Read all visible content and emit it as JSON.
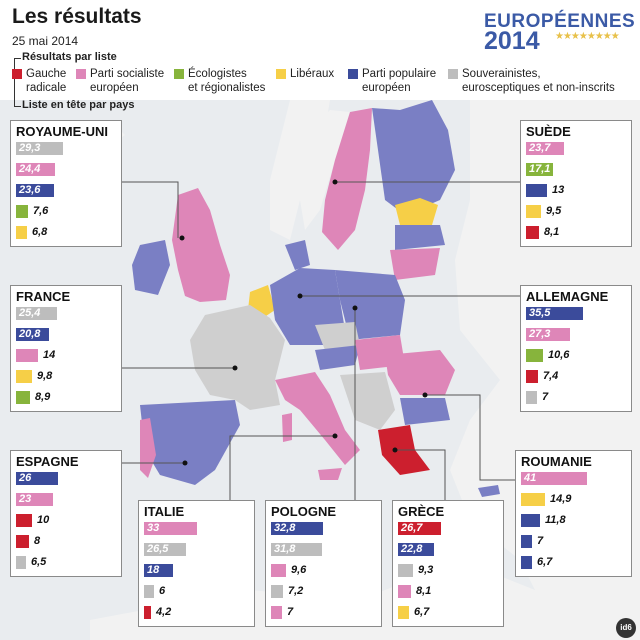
{
  "header": {
    "title": "Les résultats",
    "date": "25 mai 2014",
    "logo_word": "EUROPÉENNES",
    "logo_year": "2014"
  },
  "legend": {
    "title": "Résultats par liste",
    "subtitle": "Liste en tête par pays",
    "items": [
      {
        "key": "gauche",
        "line1": "Gauche",
        "line2": "radicale",
        "color": "#cc1f2e"
      },
      {
        "key": "ps",
        "line1": "Parti socialiste",
        "line2": "européen",
        "color": "#de86b8"
      },
      {
        "key": "eco",
        "line1": "Écologistes",
        "line2": "et régionalistes",
        "color": "#87b43c"
      },
      {
        "key": "lib",
        "line1": "Libéraux",
        "line2": "",
        "color": "#f6cf47"
      },
      {
        "key": "ppe",
        "line1": "Parti populaire",
        "line2": "européen",
        "color": "#3b4b9b"
      },
      {
        "key": "souv",
        "line1": "Souverainistes,",
        "line2": "eurosceptiques et non-inscrits",
        "color": "#bdbdbd"
      }
    ]
  },
  "chart_data": {
    "type": "bar",
    "title": "Les résultats",
    "subtitle": "25 mai 2014",
    "countries": [
      {
        "name": "ROYAUME-UNI",
        "bars": [
          {
            "party": "souv",
            "value": "29,3"
          },
          {
            "party": "ps",
            "value": "24,4"
          },
          {
            "party": "ppe",
            "value": "23,6"
          },
          {
            "party": "eco",
            "value": "7,6"
          },
          {
            "party": "lib",
            "value": "6,8"
          }
        ]
      },
      {
        "name": "FRANCE",
        "bars": [
          {
            "party": "souv",
            "value": "25,4"
          },
          {
            "party": "ppe",
            "value": "20,8"
          },
          {
            "party": "ps",
            "value": "14"
          },
          {
            "party": "lib",
            "value": "9,8"
          },
          {
            "party": "eco",
            "value": "8,9"
          }
        ]
      },
      {
        "name": "ESPAGNE",
        "bars": [
          {
            "party": "ppe",
            "value": "26"
          },
          {
            "party": "ps",
            "value": "23"
          },
          {
            "party": "gauche",
            "value": "10"
          },
          {
            "party": "gauche",
            "value": "8"
          },
          {
            "party": "souv",
            "value": "6,5"
          }
        ]
      },
      {
        "name": "ITALIE",
        "bars": [
          {
            "party": "ps",
            "value": "33"
          },
          {
            "party": "souv",
            "value": "26,5"
          },
          {
            "party": "ppe",
            "value": "18"
          },
          {
            "party": "souv",
            "value": "6"
          },
          {
            "party": "gauche",
            "value": "4,2"
          }
        ]
      },
      {
        "name": "POLOGNE",
        "bars": [
          {
            "party": "ppe",
            "value": "32,8"
          },
          {
            "party": "souv",
            "value": "31,8"
          },
          {
            "party": "ps",
            "value": "9,6"
          },
          {
            "party": "souv",
            "value": "7,2"
          },
          {
            "party": "ps",
            "value": "7"
          }
        ]
      },
      {
        "name": "GRÈCE",
        "bars": [
          {
            "party": "gauche",
            "value": "26,7"
          },
          {
            "party": "ppe",
            "value": "22,8"
          },
          {
            "party": "souv",
            "value": "9,3"
          },
          {
            "party": "ps",
            "value": "8,1"
          },
          {
            "party": "lib",
            "value": "6,7"
          }
        ]
      },
      {
        "name": "SUÈDE",
        "bars": [
          {
            "party": "ps",
            "value": "23,7"
          },
          {
            "party": "eco",
            "value": "17,1"
          },
          {
            "party": "ppe",
            "value": "13"
          },
          {
            "party": "lib",
            "value": "9,5"
          },
          {
            "party": "gauche",
            "value": "8,1"
          }
        ]
      },
      {
        "name": "ALLEMAGNE",
        "bars": [
          {
            "party": "ppe",
            "value": "35,5"
          },
          {
            "party": "ps",
            "value": "27,3"
          },
          {
            "party": "eco",
            "value": "10,6"
          },
          {
            "party": "gauche",
            "value": "7,4"
          },
          {
            "party": "souv",
            "value": "7"
          }
        ]
      },
      {
        "name": "ROUMANIE",
        "bars": [
          {
            "party": "ps",
            "value": "41"
          },
          {
            "party": "lib",
            "value": "14,9"
          },
          {
            "party": "ppe",
            "value": "11,8"
          },
          {
            "party": "ppe",
            "value": "7"
          },
          {
            "party": "ppe",
            "value": "6,7"
          }
        ]
      }
    ]
  },
  "credit": "id6"
}
